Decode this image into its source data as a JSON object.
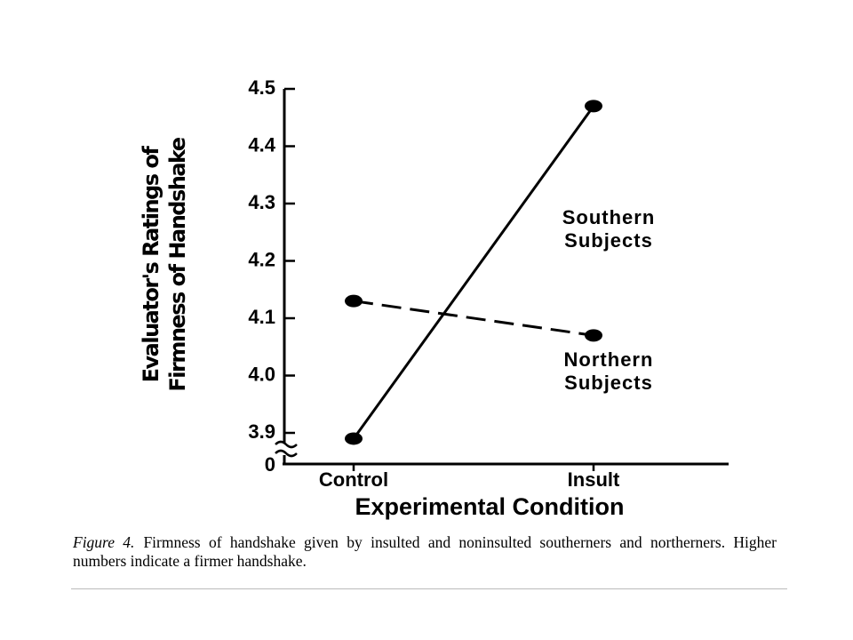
{
  "chart_data": {
    "type": "line",
    "y_label": "Evaluator's Ratings of Firmness of Handshake",
    "x_label": "Experimental Condition",
    "categories": [
      "Control",
      "Insult"
    ],
    "series": [
      {
        "name": "Southern Subjects",
        "color": "#000000",
        "dash": "solid",
        "values": [
          3.89,
          4.47
        ]
      },
      {
        "name": "Northern Subjects",
        "color": "#000000",
        "dash": "dashed",
        "values": [
          4.13,
          4.07
        ]
      }
    ],
    "ylim": [
      3.9,
      4.5
    ],
    "yticks": [
      3.9,
      {
        "value": 4,
        "label": "4.0"
      },
      4.1,
      4.2,
      4.3,
      4.4,
      4.5
    ],
    "y_break": true,
    "y_break_tick": 0,
    "figure_label": "Figure 4.",
    "caption": "Firmness of handshake given by insulted and noninsulted southerners and northerners. Higher numbers indicate a firmer handshake."
  }
}
